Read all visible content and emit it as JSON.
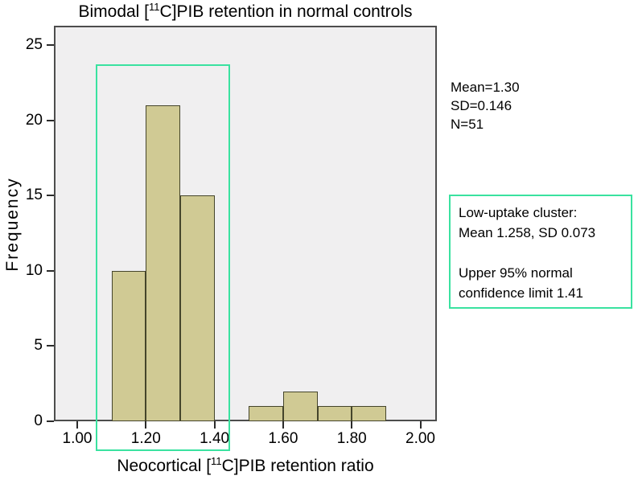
{
  "chart_data": {
    "type": "bar",
    "subtype": "histogram",
    "title": {
      "prefix": "Bimodal [",
      "superscript": "11",
      "suffix": "C]PIB retention in normal controls"
    },
    "x_axis": {
      "title_prefix": "Neocortical [",
      "title_superscript": "11",
      "title_suffix": "C]PIB retention ratio",
      "min": 0.932,
      "max": 2.048,
      "ticks": [
        {
          "value": 1.0,
          "label": "1.00"
        },
        {
          "value": 1.2,
          "label": "1.20"
        },
        {
          "value": 1.4,
          "label": "1.40"
        },
        {
          "value": 1.6,
          "label": "1.60"
        },
        {
          "value": 1.8,
          "label": "1.80"
        },
        {
          "value": 2.0,
          "label": "2.00"
        }
      ]
    },
    "y_axis": {
      "title": "Frequency",
      "min": 0,
      "max": 26.3,
      "ticks": [
        {
          "value": 0,
          "label": "0"
        },
        {
          "value": 5,
          "label": "5"
        },
        {
          "value": 10,
          "label": "10"
        },
        {
          "value": 15,
          "label": "15"
        },
        {
          "value": 20,
          "label": "20"
        },
        {
          "value": 25,
          "label": "25"
        }
      ]
    },
    "grid": false,
    "bins": [
      {
        "x0": 1.1,
        "x1": 1.2,
        "count": 10
      },
      {
        "x0": 1.2,
        "x1": 1.3,
        "count": 21
      },
      {
        "x0": 1.3,
        "x1": 1.4,
        "count": 15
      },
      {
        "x0": 1.5,
        "x1": 1.6,
        "count": 1
      },
      {
        "x0": 1.6,
        "x1": 1.7,
        "count": 2
      },
      {
        "x0": 1.7,
        "x1": 1.8,
        "count": 1
      },
      {
        "x0": 1.8,
        "x1": 1.9,
        "count": 1
      }
    ],
    "stats_label": {
      "lines": [
        "Mean=1.30",
        "SD=0.146",
        "N=51"
      ]
    },
    "highlight_rect": {
      "x0": 1.054,
      "x1": 1.446,
      "top_count": 23.75,
      "extends_below_axis": true
    },
    "annotation_box": {
      "lines": [
        "Low-uptake cluster:",
        "Mean 1.258, SD 0.073",
        "",
        "Upper 95% normal",
        "confidence limit 1.41"
      ]
    }
  },
  "colors": {
    "bar_fill": "#d0ca94",
    "bar_border": "#45452b",
    "plot_background": "#f0eff0",
    "frame_border": "#4d4d4d",
    "highlight_green": "#3ae2a0",
    "tick_color": "#2b2b2b",
    "text": "#000000",
    "page_background": "#ffffff"
  }
}
